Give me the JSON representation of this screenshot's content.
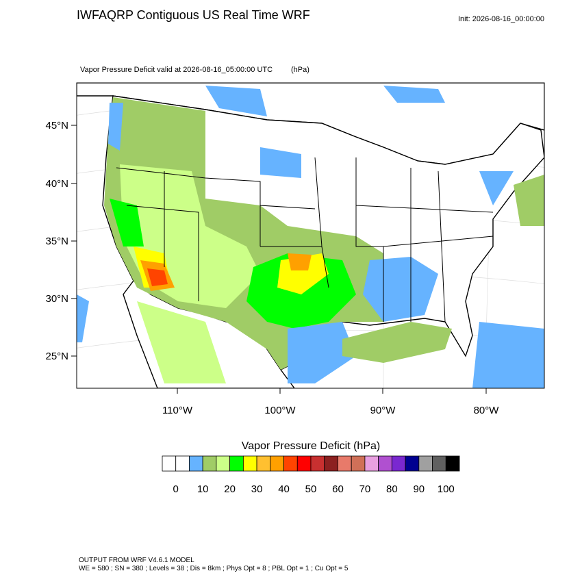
{
  "header": {
    "title": "IWFAQRP Contiguous US Real Time WRF",
    "init": "Init: 2026-08-16_00:00:00"
  },
  "map": {
    "subtitle": "Vapor Pressure Deficit valid at 2026-08-16_05:00:00 UTC",
    "units": "(hPa)",
    "lat_labels": [
      "45°N",
      "40°N",
      "35°N",
      "30°N",
      "25°N"
    ],
    "lon_labels": [
      "110°W",
      "100°W",
      "90°W",
      "80°W"
    ]
  },
  "colorbar": {
    "title": "Vapor Pressure Deficit  (hPa)",
    "colors": [
      "#ffffff",
      "#ffffff",
      "#66b3ff",
      "#a0cc66",
      "#ccff88",
      "#00ff00",
      "#ffff00",
      "#ffc030",
      "#ffa000",
      "#ff4400",
      "#ff0000",
      "#c83030",
      "#8c2020",
      "#e87a6a",
      "#d07058",
      "#e8a0e0",
      "#b050d0",
      "#7a28d0",
      "#000090",
      "#a0a0a0",
      "#606060",
      "#000000"
    ],
    "labels": [
      0,
      10,
      20,
      30,
      40,
      50,
      60,
      70,
      80,
      90,
      100
    ]
  },
  "footer": {
    "lines": [
      "OUTPUT FROM WRF V4.6.1 MODEL",
      "WE = 580 ; SN = 380 ; Levels = 38 ; Dis = 8km ; Phys Opt = 8 ; PBL Opt = 1 ; Cu Opt = 5"
    ]
  }
}
